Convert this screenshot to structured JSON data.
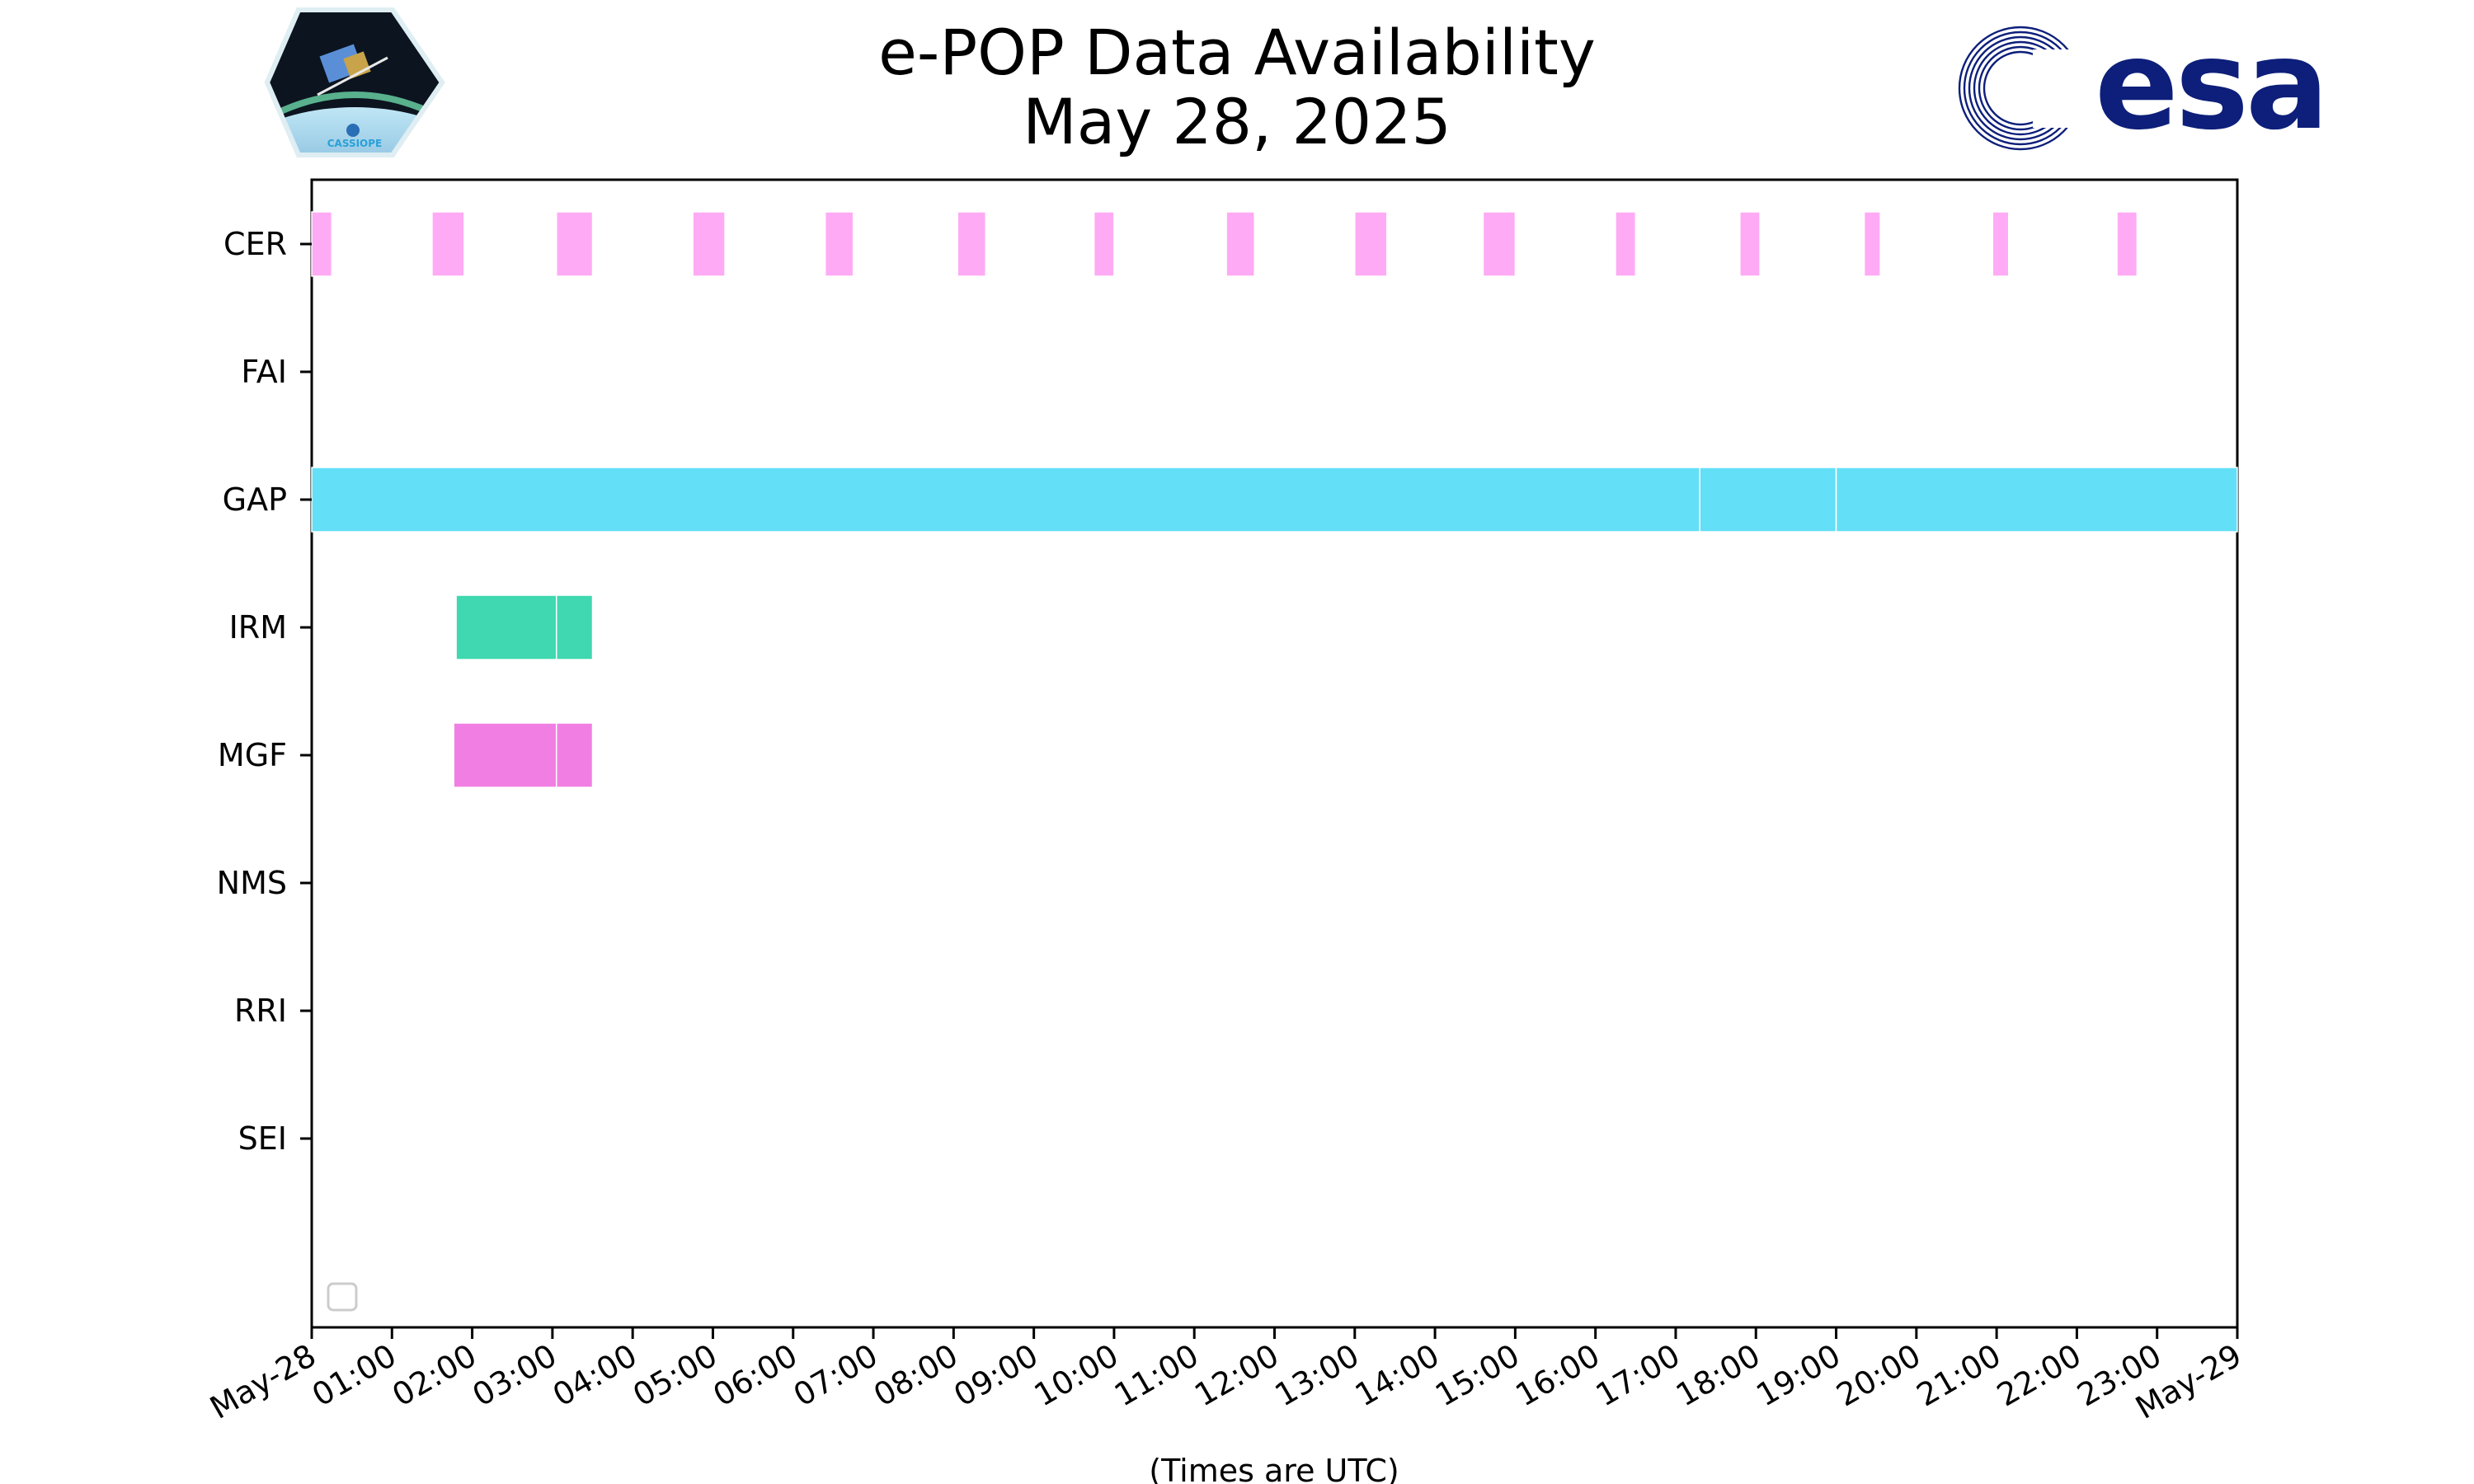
{
  "chart_data": {
    "type": "timeline",
    "title": "e-POP Data Availability",
    "subtitle": "May 28, 2025",
    "xlabel": "(Times are UTC)",
    "ylabel": "",
    "x_unit": "hours UTC",
    "xlim": [
      0,
      24
    ],
    "x_tick_labels": [
      "May-28",
      "01:00",
      "02:00",
      "03:00",
      "04:00",
      "05:00",
      "06:00",
      "07:00",
      "08:00",
      "09:00",
      "10:00",
      "11:00",
      "12:00",
      "13:00",
      "14:00",
      "15:00",
      "16:00",
      "17:00",
      "18:00",
      "19:00",
      "20:00",
      "21:00",
      "22:00",
      "23:00",
      "May-29"
    ],
    "categories": [
      "CER",
      "FAI",
      "GAP",
      "IRM",
      "MGF",
      "NMS",
      "RRI",
      "SEI"
    ],
    "legend": "lower-left (empty)",
    "grid": false,
    "series": [
      {
        "category": "CER",
        "color": "#ffaaf5",
        "intervals": [
          [
            0.0,
            0.25
          ],
          [
            1.5,
            1.9
          ],
          [
            3.05,
            3.5
          ],
          [
            4.75,
            5.15
          ],
          [
            6.4,
            6.75
          ],
          [
            8.05,
            8.4
          ],
          [
            9.75,
            10.0
          ],
          [
            11.4,
            11.75
          ],
          [
            13.0,
            13.4
          ],
          [
            14.6,
            15.0
          ],
          [
            16.25,
            16.5
          ],
          [
            17.8,
            18.05
          ],
          [
            19.35,
            19.55
          ],
          [
            20.95,
            21.15
          ],
          [
            22.5,
            22.75
          ]
        ]
      },
      {
        "category": "FAI",
        "color": "#7ad0ff",
        "intervals": []
      },
      {
        "category": "GAP",
        "color": "#63dff7",
        "intervals": [
          [
            0.0,
            17.3
          ],
          [
            17.3,
            19.0
          ],
          [
            19.0,
            24.0
          ]
        ]
      },
      {
        "category": "IRM",
        "color": "#3fd8b0",
        "intervals": [
          [
            1.8,
            3.05
          ],
          [
            3.05,
            3.5
          ]
        ]
      },
      {
        "category": "MGF",
        "color": "#f17fe3",
        "intervals": [
          [
            1.77,
            3.05
          ],
          [
            3.05,
            3.5
          ]
        ]
      },
      {
        "category": "NMS",
        "color": "#999999",
        "intervals": []
      },
      {
        "category": "RRI",
        "color": "#999999",
        "intervals": []
      },
      {
        "category": "SEI",
        "color": "#999999",
        "intervals": []
      }
    ]
  },
  "logos": {
    "left": {
      "name": "cassiope-mission-logo",
      "text": "CASSIOPE"
    },
    "right": {
      "name": "esa-logo",
      "text": "esa",
      "color": "#0d1f7a"
    }
  }
}
